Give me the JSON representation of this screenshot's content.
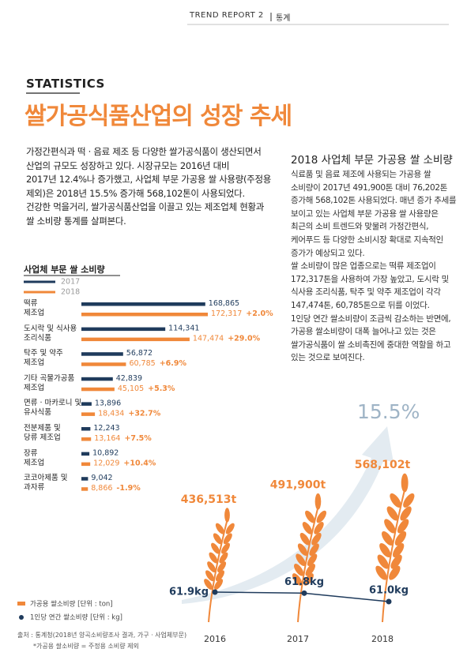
{
  "header": {
    "running_title": "TREND REPORT 2",
    "section": "통계"
  },
  "kicker": "STATISTICS",
  "title": "쌀가공식품산업의 성장 추세",
  "intro": {
    "lines": [
      "가정간편식과 떡 · 음료 제조 등 다양한 쌀가공식품이 생산되면서",
      "산업의 규모도 성장하고 있다. 시장규모는 2016년 대비",
      "2017년 12.4%나 증가했고, 사업체 부문 가공용 쌀 사용량(주정용",
      "제외)은 2018년 15.5% 증가해 568,102톤이 사용되었다.",
      "건강한 먹을거리, 쌀가공식품산업을 이끌고 있는 제조업체 현황과",
      "쌀 소비량 통계를 살펴본다."
    ]
  },
  "sidebar": {
    "title": "2018 사업체 부문 가공용 쌀 소비량",
    "lines": [
      "식료품 및 음료 제조에 사용되는 가공용 쌀",
      "소비량이 2017년 491,900톤 대비 76,202톤",
      "증가해 568,102톤 사용되었다. 매년 증가 추세를",
      "보이고 있는 사업체 부문 가공용 쌀 사용량은",
      "최근의 소비 트렌드와 맞물려 가정간편식,",
      "케어푸드 등 다양한 소비시장 확대로 지속적인",
      "증가가 예상되고 있다.",
      "쌀 소비량이 많은 업종으로는 떡류 제조업이",
      "172,317톤을 사용하여 가장 높았고, 도시락 및",
      "식사용 조리식품, 탁주 및 약주 제조업이 각각",
      "147,474톤, 60,785톤으로 뒤를 이었다.",
      "1인당 연간 쌀소비량이 조금씩 감소하는 반면에,",
      "가공용 쌀소비량이 대폭 늘어나고 있는 것은",
      "쌀가공식품이 쌀 소비촉진에 중대한 역할을 하고",
      "있는 것으로 보여진다."
    ]
  },
  "source": {
    "lines": [
      "출처 : 통계청(2018년 양곡소비량조사 결과, 가구 · 사업체부문)",
      "*가공용 쌀소비량 = 주정용 소비량 제외"
    ]
  },
  "chart_data": [
    {
      "type": "bar",
      "orientation": "horizontal",
      "title": "사업체 부문 쌀 소비량",
      "categories": [
        "떡류\n제조업",
        "도시락 및 식사용\n조리식품",
        "탁주 및 약주\n제조업",
        "기타 곡물가공품\n제조업",
        "면류 · 마카로니 및\n유사식품",
        "전분제품 및\n당류 제조업",
        "장류\n제조업",
        "코코아제품 및\n과자류"
      ],
      "series": [
        {
          "name": "2017",
          "color": "#1f3b5c",
          "values": [
            168865,
            114341,
            56872,
            42839,
            13896,
            12243,
            10892,
            9042
          ],
          "value_labels": [
            "168,865",
            "114,341",
            "56,872",
            "42,839",
            "13,896",
            "12,243",
            "10,892",
            "9,042"
          ]
        },
        {
          "name": "2018",
          "color": "#f0883a",
          "values": [
            172317,
            147474,
            60785,
            45105,
            18434,
            13164,
            12029,
            8866
          ],
          "value_labels": [
            "172,317",
            "147,474",
            "60,785",
            "45,105",
            "18,434",
            "13,164",
            "12,029",
            "8,866"
          ]
        }
      ],
      "annotations": [
        "+2.0%",
        "+29.0%",
        "+6.9%",
        "+5.3%",
        "+32.7%",
        "+7.5%",
        "+10.4%",
        "-1.9%"
      ]
    },
    {
      "type": "combo",
      "categories": [
        "2016",
        "2017",
        "2018"
      ],
      "annotation": "15.5%",
      "series": [
        {
          "name": "가공용 쌀소비량 [단위 : ton]",
          "type": "wheat",
          "color": "#f0883a",
          "values": [
            436513,
            491900,
            568102
          ],
          "value_labels": [
            "436,513t",
            "491,900t",
            "568,102t"
          ]
        },
        {
          "name": "1인당 연간 쌀소비량 [단위 : kg]",
          "type": "line",
          "color": "#1f3b5c",
          "values": [
            61.9,
            61.8,
            61.0
          ],
          "value_labels": [
            "61.9kg",
            "61.8kg",
            "61.0kg"
          ]
        }
      ]
    }
  ]
}
